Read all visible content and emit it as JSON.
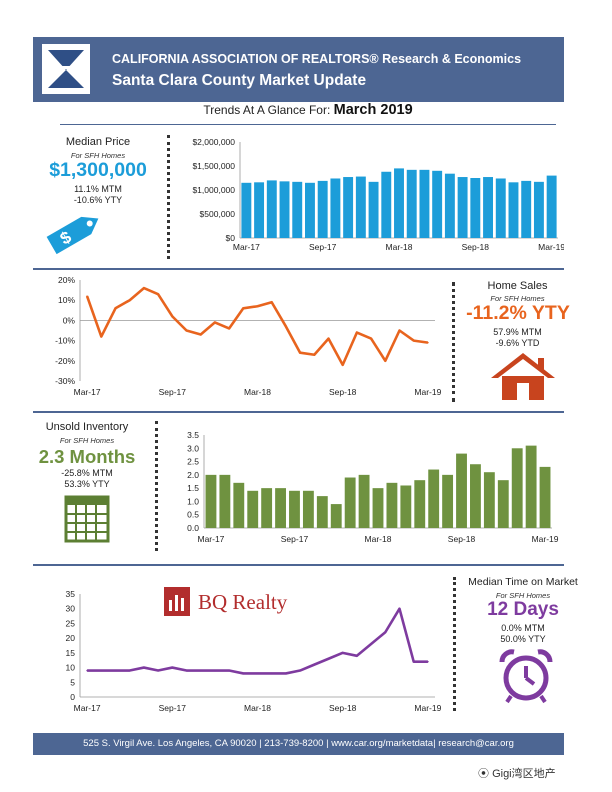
{
  "header": {
    "line1": "CALIFORNIA ASSOCIATION OF REALTORS® Research & Economics",
    "line2": "Santa Clara County Market Update"
  },
  "trends": {
    "prefix": "Trends At A Glance For:",
    "month": "March 2019"
  },
  "median_price": {
    "title": "Median Price",
    "subtitle": "For SFH Homes",
    "value": "$1,300,000",
    "mtm": "11.1% MTM",
    "ytd": "-10.6% YTY",
    "icon": "price-tag-icon",
    "color": "#1c9dd9"
  },
  "home_sales": {
    "title": "Home Sales",
    "subtitle": "For SFH Homes",
    "value": "-11.2% YTY",
    "mtm": "57.9% MTM",
    "ytd": "-9.6% YTD",
    "icon": "house-icon",
    "color": "#e8641e"
  },
  "inventory": {
    "title": "Unsold Inventory",
    "subtitle": "For SFH Homes",
    "value": "2.3 Months",
    "mtm": "-25.8% MTM",
    "ytd": "53.3% YTY",
    "icon": "calendar-icon",
    "color": "#6f9240"
  },
  "time_on_market": {
    "title": "Median Time on Market",
    "subtitle": "For SFH Homes",
    "value": "12 Days",
    "mtm": "0.0% MTM",
    "ytd": "50.0% YTY",
    "icon": "alarm-clock-icon",
    "color": "#7e3b9f"
  },
  "watermark_brand": "BQ Realty",
  "footer": "525 S. Virgil Ave. Los Angeles, CA 90020 | 213-739-8200 | www.car.org/marketdata| research@car.org",
  "wechat": "Gigi湾区地产",
  "chart_data": [
    {
      "type": "bar",
      "categories": [
        "Mar-17",
        "Apr-17",
        "May-17",
        "Jun-17",
        "Jul-17",
        "Aug-17",
        "Sep-17",
        "Oct-17",
        "Nov-17",
        "Dec-17",
        "Jan-18",
        "Feb-18",
        "Mar-18",
        "Apr-18",
        "May-18",
        "Jun-18",
        "Jul-18",
        "Aug-18",
        "Sep-18",
        "Oct-18",
        "Nov-18",
        "Dec-18",
        "Jan-19",
        "Feb-19",
        "Mar-19"
      ],
      "values": [
        1150000,
        1160000,
        1200000,
        1180000,
        1170000,
        1150000,
        1190000,
        1240000,
        1270000,
        1280000,
        1170000,
        1380000,
        1450000,
        1420000,
        1420000,
        1400000,
        1340000,
        1270000,
        1250000,
        1270000,
        1240000,
        1160000,
        1190000,
        1170000,
        1300000
      ],
      "ylim": [
        0,
        2000000
      ],
      "yticks": [
        "$0",
        "$500,000",
        "$1,000,000",
        "$1,500,000",
        "$2,000,000"
      ],
      "xticks": [
        "Mar-17",
        "Sep-17",
        "Mar-18",
        "Sep-18",
        "Mar-19"
      ],
      "color": "#1c9dd9"
    },
    {
      "type": "line",
      "categories": [
        "Mar-17",
        "Apr-17",
        "May-17",
        "Jun-17",
        "Jul-17",
        "Aug-17",
        "Sep-17",
        "Oct-17",
        "Nov-17",
        "Dec-17",
        "Jan-18",
        "Feb-18",
        "Mar-18",
        "Apr-18",
        "May-18",
        "Jun-18",
        "Jul-18",
        "Aug-18",
        "Sep-18",
        "Oct-18",
        "Nov-18",
        "Dec-18",
        "Jan-19",
        "Feb-19",
        "Mar-19"
      ],
      "values": [
        12,
        -8,
        6,
        10,
        16,
        13,
        2,
        -5,
        -7,
        -1,
        -4,
        6,
        7,
        9,
        -3,
        -16,
        -17,
        -9,
        -22,
        -6,
        -9,
        -20,
        -5,
        -10,
        -11
      ],
      "ylim": [
        -30,
        20
      ],
      "yticks": [
        "-30%",
        "-20%",
        "-10%",
        "0%",
        "10%",
        "20%"
      ],
      "xticks": [
        "Mar-17",
        "Sep-17",
        "Mar-18",
        "Sep-18",
        "Mar-19"
      ],
      "color": "#e8641e"
    },
    {
      "type": "bar",
      "categories": [
        "Mar-17",
        "Apr-17",
        "May-17",
        "Jun-17",
        "Jul-17",
        "Aug-17",
        "Sep-17",
        "Oct-17",
        "Nov-17",
        "Dec-17",
        "Jan-18",
        "Feb-18",
        "Mar-18",
        "Apr-18",
        "May-18",
        "Jun-18",
        "Jul-18",
        "Aug-18",
        "Sep-18",
        "Oct-18",
        "Nov-18",
        "Dec-18",
        "Jan-19",
        "Feb-19",
        "Mar-19"
      ],
      "values": [
        2.0,
        2.0,
        1.7,
        1.4,
        1.5,
        1.5,
        1.4,
        1.4,
        1.2,
        0.9,
        1.9,
        2.0,
        1.5,
        1.7,
        1.6,
        1.8,
        2.2,
        2.0,
        2.8,
        2.4,
        2.1,
        1.8,
        3.0,
        3.1,
        2.3
      ],
      "ylim": [
        0,
        3.5
      ],
      "yticks": [
        "0.0",
        "0.5",
        "1.0",
        "1.5",
        "2.0",
        "2.5",
        "3.0",
        "3.5"
      ],
      "xticks": [
        "Mar-17",
        "Sep-17",
        "Mar-18",
        "Sep-18",
        "Mar-19"
      ],
      "color": "#6f9240"
    },
    {
      "type": "line",
      "categories": [
        "Mar-17",
        "Apr-17",
        "May-17",
        "Jun-17",
        "Jul-17",
        "Aug-17",
        "Sep-17",
        "Oct-17",
        "Nov-17",
        "Dec-17",
        "Jan-18",
        "Feb-18",
        "Mar-18",
        "Apr-18",
        "May-18",
        "Jun-18",
        "Jul-18",
        "Aug-18",
        "Sep-18",
        "Oct-18",
        "Nov-18",
        "Dec-18",
        "Jan-19",
        "Feb-19",
        "Mar-19"
      ],
      "values": [
        9,
        9,
        9,
        9,
        10,
        9,
        10,
        9,
        9,
        9,
        9,
        8,
        8,
        8,
        8,
        9,
        11,
        13,
        15,
        14,
        18,
        22,
        30,
        12,
        12
      ],
      "ylim": [
        0,
        35
      ],
      "yticks": [
        "0",
        "5",
        "10",
        "15",
        "20",
        "25",
        "30",
        "35"
      ],
      "xticks": [
        "Mar-17",
        "Sep-17",
        "Mar-18",
        "Sep-18",
        "Mar-19"
      ],
      "color": "#7e3b9f"
    }
  ]
}
